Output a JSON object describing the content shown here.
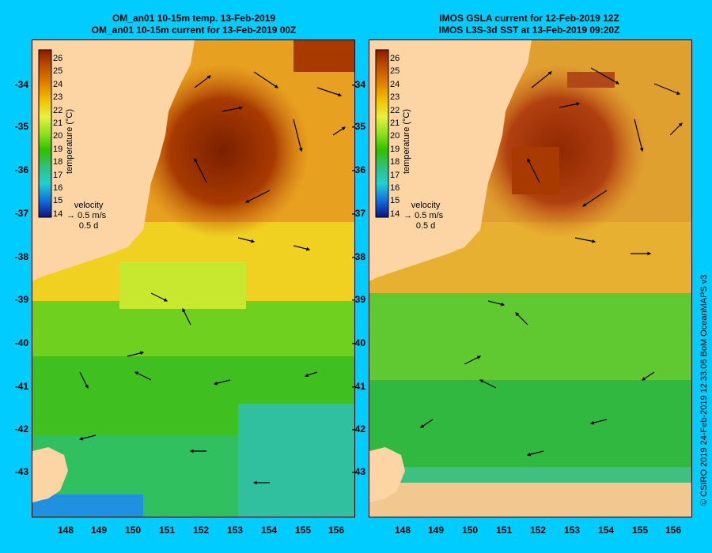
{
  "panels": [
    {
      "title_line1": "OM_an01 10-15m temp. 13-Feb-2019",
      "title_line2": "OM_an01 10-15m current for 13-Feb-2019 00Z"
    },
    {
      "title_line1": "IMOS GSLA current for 12-Feb-2019 12Z",
      "title_line2": "IMOS L3S-3d SST at 13-Feb-2019 09:20Z"
    }
  ],
  "colorbar": {
    "ticks": [
      "26",
      "25",
      "24",
      "23",
      "22",
      "21",
      "20",
      "19",
      "18",
      "17",
      "16",
      "15",
      "14"
    ],
    "label": "temperature (°C)"
  },
  "velocity_key": {
    "title": "velocity",
    "speed": "0.5 m/s",
    "duration": "0.5 d"
  },
  "y_axis_ticks": [
    "-34",
    "-35",
    "-36",
    "-37",
    "-38",
    "-39",
    "-40",
    "-41",
    "-42",
    "-43"
  ],
  "x_axis_ticks": [
    "148",
    "149",
    "150",
    "151",
    "152",
    "153",
    "154",
    "155",
    "156"
  ],
  "credit": "© CSIRO 2019   24-Feb-2019 12:33:06 BoM OceanMAPS v3",
  "colors": {
    "background": "#00ccff",
    "land": "#fdd5a5"
  }
}
